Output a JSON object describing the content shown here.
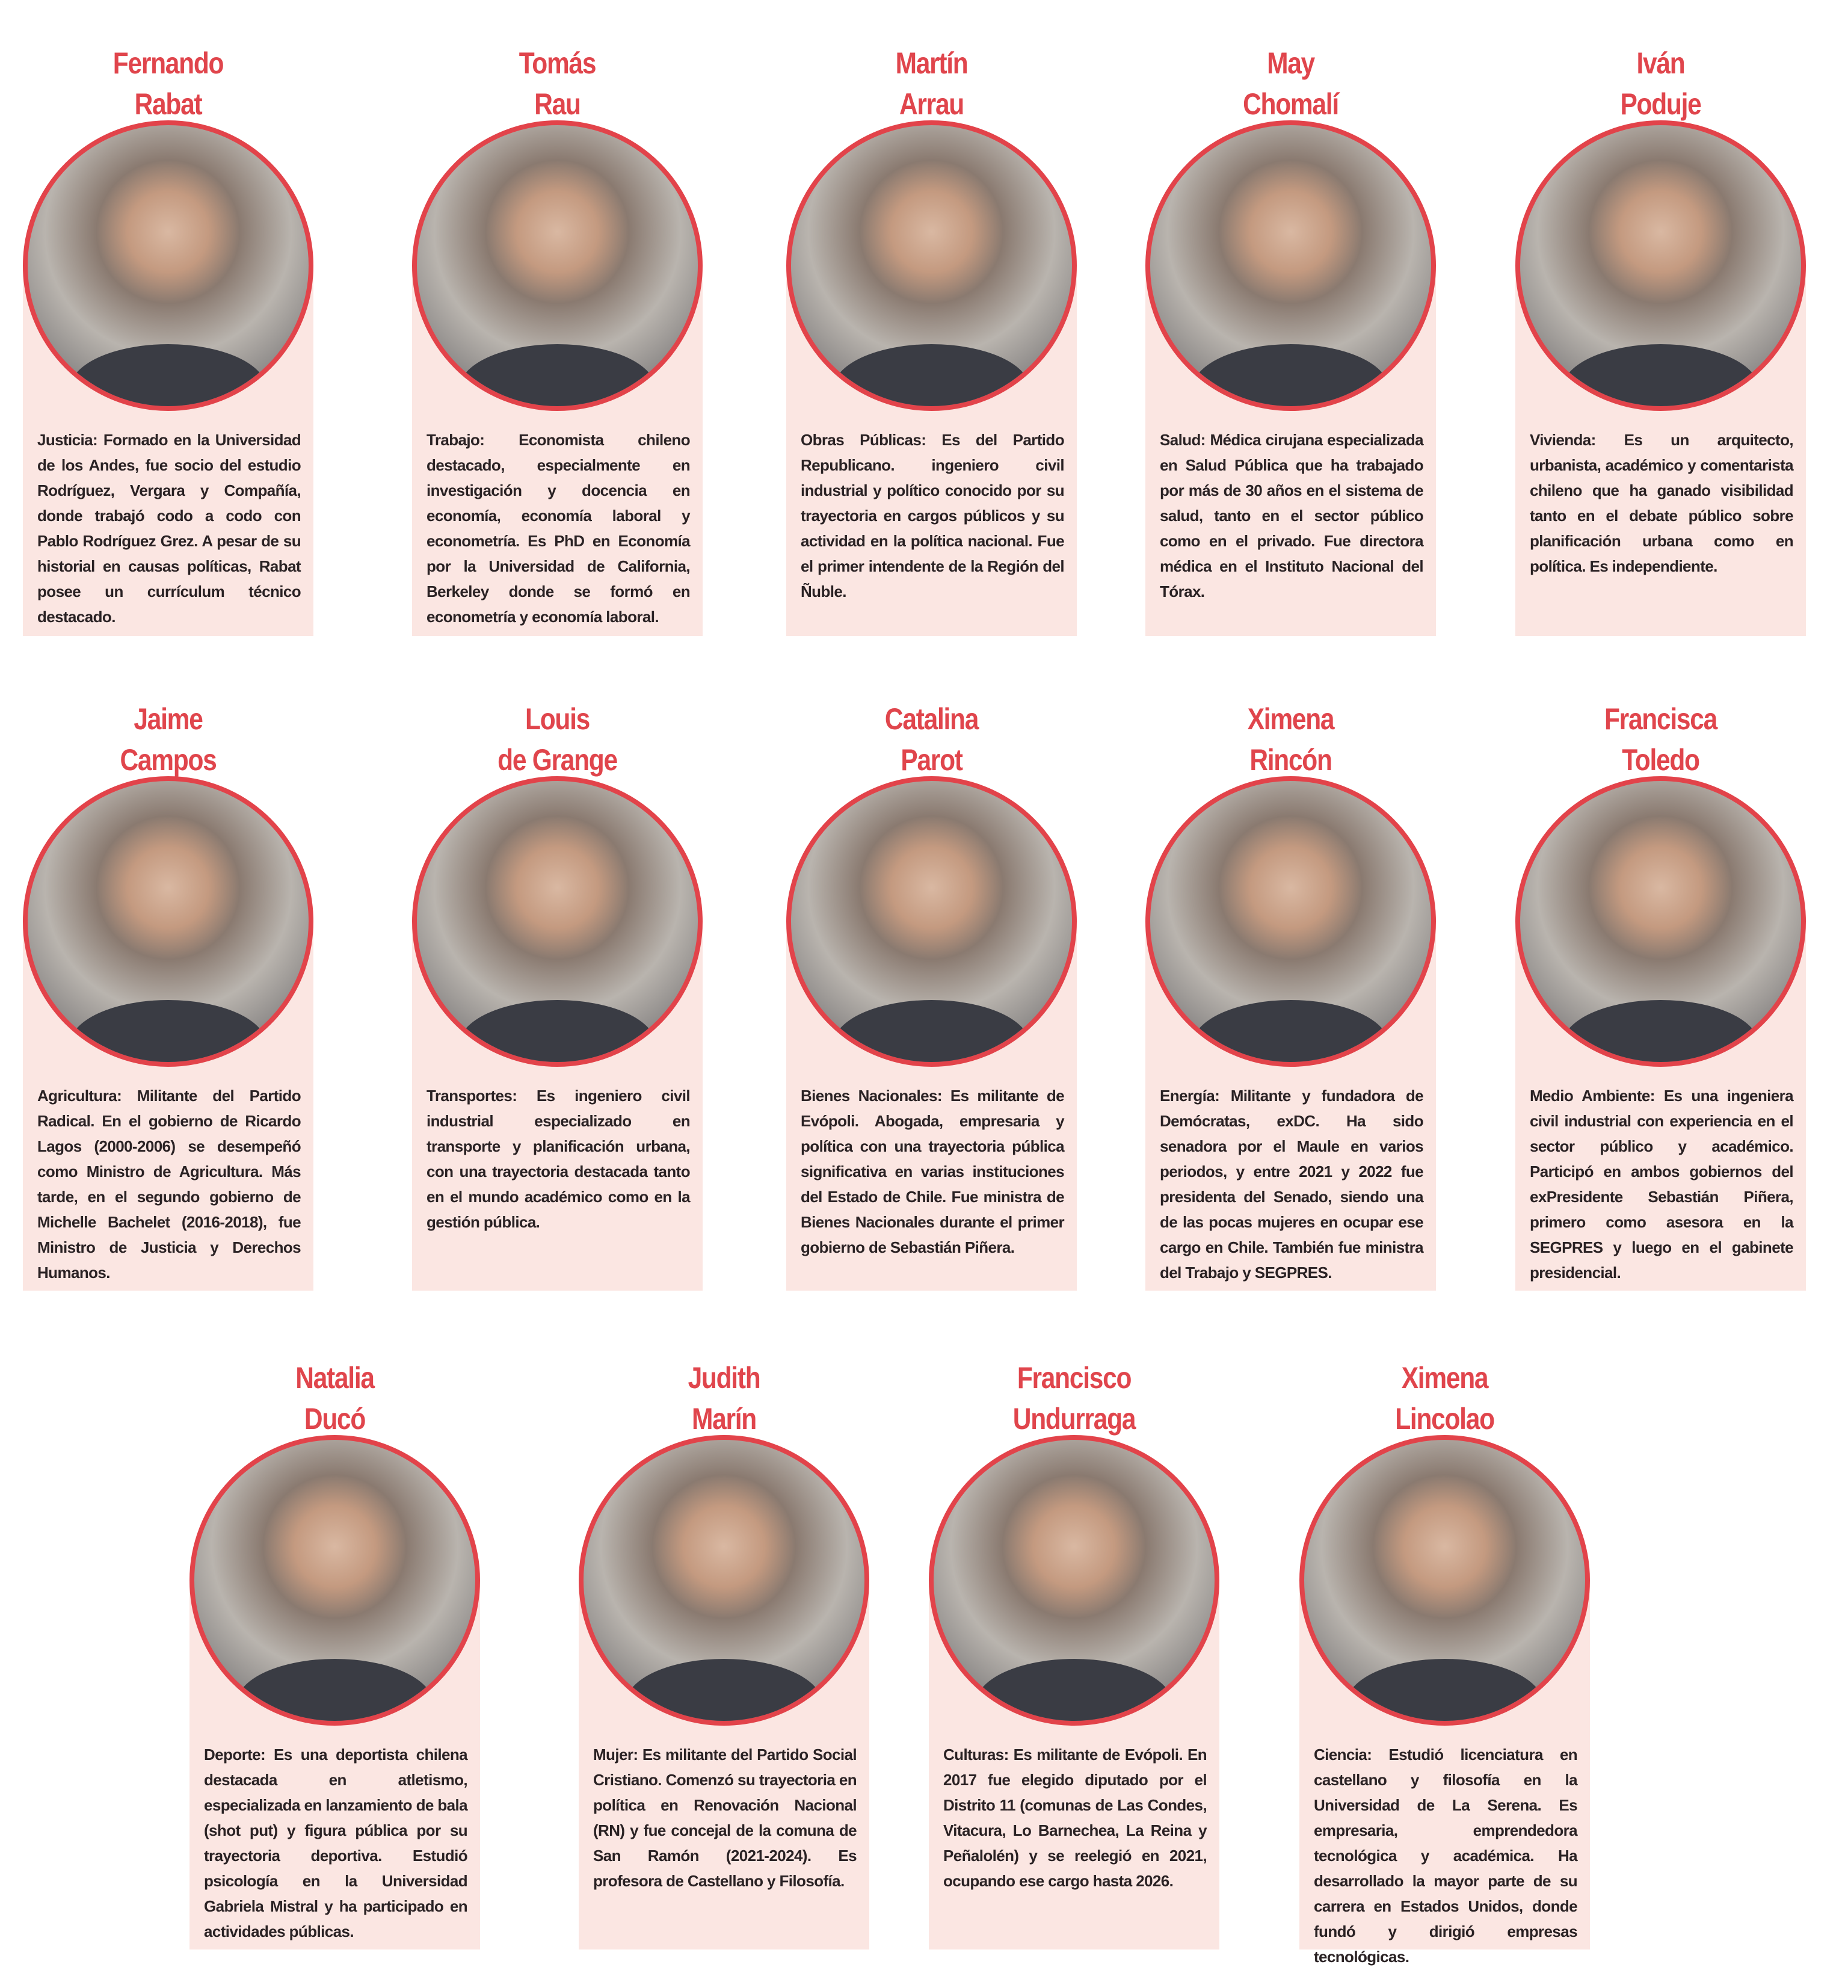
{
  "colors": {
    "name_red": "#e0454c",
    "card_bg": "#fbe6e2",
    "ring": "#e2434a",
    "text": "#2a2224"
  },
  "people": [
    {
      "first": "Fernando",
      "last": "Rabat",
      "bio": "Justicia: Formado en la Universidad de los Andes, fue socio del estudio Rodríguez, Vergara y Compañía, donde trabajó codo a codo con Pablo Rodríguez Grez. A pesar de su historial en causas políticas, Rabat posee un currículum técnico destacado."
    },
    {
      "first": "Tomás",
      "last": "Rau",
      "bio": "Trabajo: Economista chileno destacado, especialmente en investigación y docencia en economía, economía laboral y econometría. Es PhD en Economía por la Universidad de California, Berkeley donde se formó en econometría y economía laboral."
    },
    {
      "first": "Martín",
      "last": "Arrau",
      "bio": "Obras Públicas: Es del Partido Republicano. ingeniero civil industrial y político conocido por su trayectoria en cargos públicos y su actividad en la política nacional. Fue el primer intendente de la Región del Ñuble."
    },
    {
      "first": "May",
      "last": "Chomalí",
      "bio": "Salud: Médica cirujana especializada en Salud Pública que ha trabajado por más de 30 años en el sistema de salud, tanto en el sector público como en el privado. Fue directora médica en el Instituto Nacional del Tórax."
    },
    {
      "first": "Iván",
      "last": "Poduje",
      "bio": "Vivienda: Es un arquitecto, urbanista, académico y comentarista chileno que ha ganado visibilidad tanto en el debate público sobre planificación urbana como en política. Es independiente."
    },
    {
      "first": "Jaime",
      "last": "Campos",
      "bio": "Agricultura: Militante del Partido Radical. En el gobierno de Ricardo Lagos (2000-2006) se desempeñó como Ministro de Agricultura. Más tarde, en el segundo gobierno de Michelle Bachelet (2016-2018), fue Ministro de Justicia y Derechos Humanos."
    },
    {
      "first": "Louis",
      "last": "de Grange",
      "bio": "Transportes: Es ingeniero civil industrial especializado en transporte y planificación urbana, con una trayectoria destacada tanto en el mundo académico como en la gestión pública."
    },
    {
      "first": "Catalina",
      "last": "Parot",
      "bio": "Bienes Nacionales: Es militante de Evópoli. Abogada, empresaria y política con una trayectoria pública significativa en varias instituciones del Estado de Chile. Fue ministra de Bienes Nacionales durante el primer gobierno de Sebastián Piñera."
    },
    {
      "first": "Ximena",
      "last": "Rincón",
      "bio": "Energía: Militante y fundadora de Demócratas, exDC. Ha sido senadora por el Maule en varios periodos, y entre 2021 y 2022 fue presidenta del Senado, siendo una de las pocas mujeres en ocupar ese cargo en Chile. También fue ministra del Trabajo y SEGPRES."
    },
    {
      "first": "Francisca",
      "last": "Toledo",
      "bio": "Medio Ambiente: Es una ingeniera civil industrial con experiencia en el sector público y académico. Participó en ambos gobiernos del exPresidente Sebastián Piñera, primero como asesora en la SEGPRES y luego en el gabinete presidencial."
    },
    {
      "first": "Natalia",
      "last": "Ducó",
      "bio": "Deporte: Es una deportista chilena destacada en atletismo, especializada en lanzamiento de bala (shot put) y figura pública por su trayectoria deportiva. Estudió psicología en la Universidad Gabriela Mistral y ha participado en actividades públicas."
    },
    {
      "first": "Judith",
      "last": "Marín",
      "bio": "Mujer: Es militante del Partido Social Cristiano. Comenzó su trayectoria en política en Renovación Nacional (RN) y fue concejal de la comuna de San Ramón (2021-2024). Es profesora de Castellano y Filosofía."
    },
    {
      "first": "Francisco",
      "last": "Undurraga",
      "bio": "Culturas: Es militante de Evópoli. En 2017 fue elegido diputado por el Distrito 11 (comunas de Las Condes, Vitacura, Lo Barnechea, La Reina y Peñalolén) y se reelegió en 2021, ocupando ese cargo hasta 2026."
    },
    {
      "first": "Ximena",
      "last": "Lincolao",
      "bio": "Ciencia: Estudió licenciatura en castellano y filosofía en la Universidad de La Serena. Es empresaria, emprendedora tecnológica y académica. Ha desarrollado la mayor parte de su carrera en Estados Unidos, donde fundó y dirigió empresas tecnológicas."
    }
  ]
}
